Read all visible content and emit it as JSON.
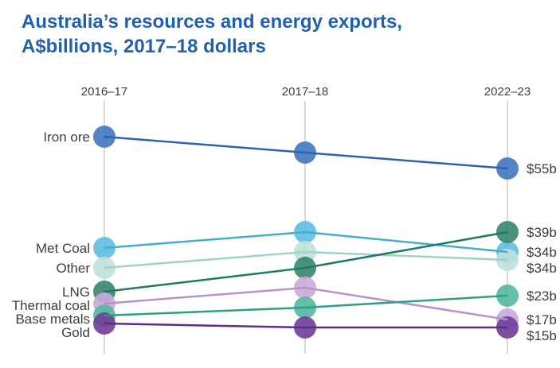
{
  "title": {
    "line1": "Australia’s resources and energy exports,",
    "line2": "A$billions, 2017–18 dollars"
  },
  "colors": {
    "title_blue": "#2160AC",
    "label_gray": "#3D3D3D",
    "gridline_gray": "#D9D9D9",
    "background": "#FFFFFF"
  },
  "chart_data": {
    "type": "line",
    "subtype": "slope-chart",
    "title": "Australia’s resources and energy exports, A$billions, 2017–18 dollars",
    "categories": [
      "2016–17",
      "2017–18",
      "2022–23"
    ],
    "unit": "A$ billions (2017–18 dollars)",
    "ylim": [
      0,
      75
    ],
    "grid": "vertical-category-lines-only",
    "legend_position": "series-names-left, value-labels-right",
    "series": [
      {
        "name": "Iron ore",
        "values": [
          63,
          59,
          55
        ],
        "end_label": "$55b",
        "dot_color": "#4277BF",
        "line_color": "#2D63AE"
      },
      {
        "name": "Met Coal",
        "values": [
          35,
          39,
          34
        ],
        "end_label": "$34b",
        "dot_color": "#5FBCE4",
        "line_color": "#45AECE"
      },
      {
        "name": "Other",
        "values": [
          30,
          34,
          34
        ],
        "end_label": "$34b",
        "dot_color": "#BFE0DC",
        "line_color": "#9FD0CC"
      },
      {
        "name": "LNG",
        "values": [
          24,
          30,
          39
        ],
        "end_label": "$39b",
        "dot_color": "#35866E",
        "line_color": "#1E7A64"
      },
      {
        "name": "Thermal coal",
        "values": [
          21,
          25,
          17
        ],
        "end_label": "$17b",
        "dot_color": "#C9ABDA",
        "line_color": "#B393C8"
      },
      {
        "name": "Base metals",
        "values": [
          18,
          20,
          23
        ],
        "end_label": "$23b",
        "dot_color": "#53B89F",
        "line_color": "#2F9E86"
      },
      {
        "name": "Gold",
        "values": [
          17,
          15,
          15
        ],
        "end_label": "$15b",
        "dot_color": "#6F3D99",
        "line_color": "#5C2D87"
      }
    ]
  }
}
